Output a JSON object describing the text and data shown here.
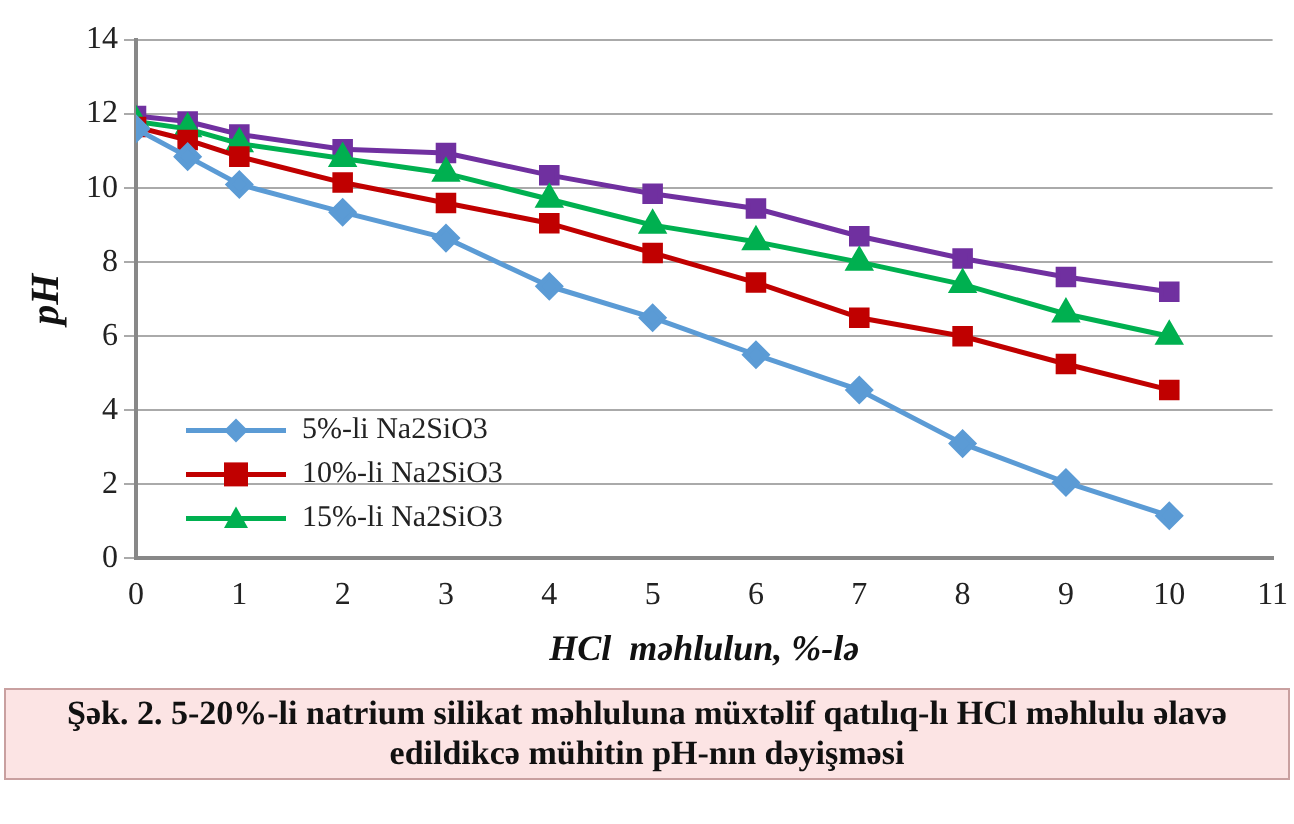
{
  "chart_data": {
    "type": "line",
    "xlabel": "HCl  məhlulun, %-lə",
    "ylabel": "pH",
    "x": [
      0,
      0.5,
      1,
      2,
      3,
      4,
      5,
      6,
      7,
      8,
      9,
      10
    ],
    "series": [
      {
        "name": "5%-li Na2SiO3",
        "color": "#5b9bd5",
        "marker": "diamond",
        "values": [
          11.6,
          10.85,
          10.1,
          9.35,
          8.65,
          7.35,
          6.5,
          5.5,
          4.55,
          3.1,
          2.05,
          1.15
        ]
      },
      {
        "name": "10%-li Na2SiO3",
        "color": "#c00000",
        "marker": "square",
        "values": [
          11.65,
          11.3,
          10.85,
          10.15,
          9.6,
          9.05,
          8.25,
          7.45,
          6.5,
          6.0,
          5.25,
          4.55
        ]
      },
      {
        "name": "15%-li Na2SiO3",
        "color": "#00b050",
        "marker": "triangle",
        "values": [
          11.8,
          11.6,
          11.2,
          10.8,
          10.4,
          9.7,
          9.0,
          8.55,
          8.0,
          7.4,
          6.6,
          6.0
        ]
      },
      {
        "color": "#7030a0",
        "marker": "square",
        "values": [
          11.95,
          11.8,
          11.45,
          11.05,
          10.95,
          10.35,
          9.85,
          9.45,
          8.7,
          8.1,
          7.6,
          7.2
        ]
      }
    ],
    "xlim": [
      0,
      11
    ],
    "xticks": [
      0,
      1,
      2,
      3,
      4,
      5,
      6,
      7,
      8,
      9,
      10,
      11
    ],
    "ylim": [
      0,
      14
    ],
    "yticks": [
      0,
      2,
      4,
      6,
      8,
      10,
      12,
      14
    ],
    "grid": "y",
    "legend": "bottom left",
    "line_style": "solid",
    "annotations": [
      "Şək. 2. 5-20%-li  natrium silikat məhluluna müxtəlif qatılıq-lı HCl məhlulu əlavə edildikcə mühitin pH-nın dəyişməsi"
    ]
  }
}
